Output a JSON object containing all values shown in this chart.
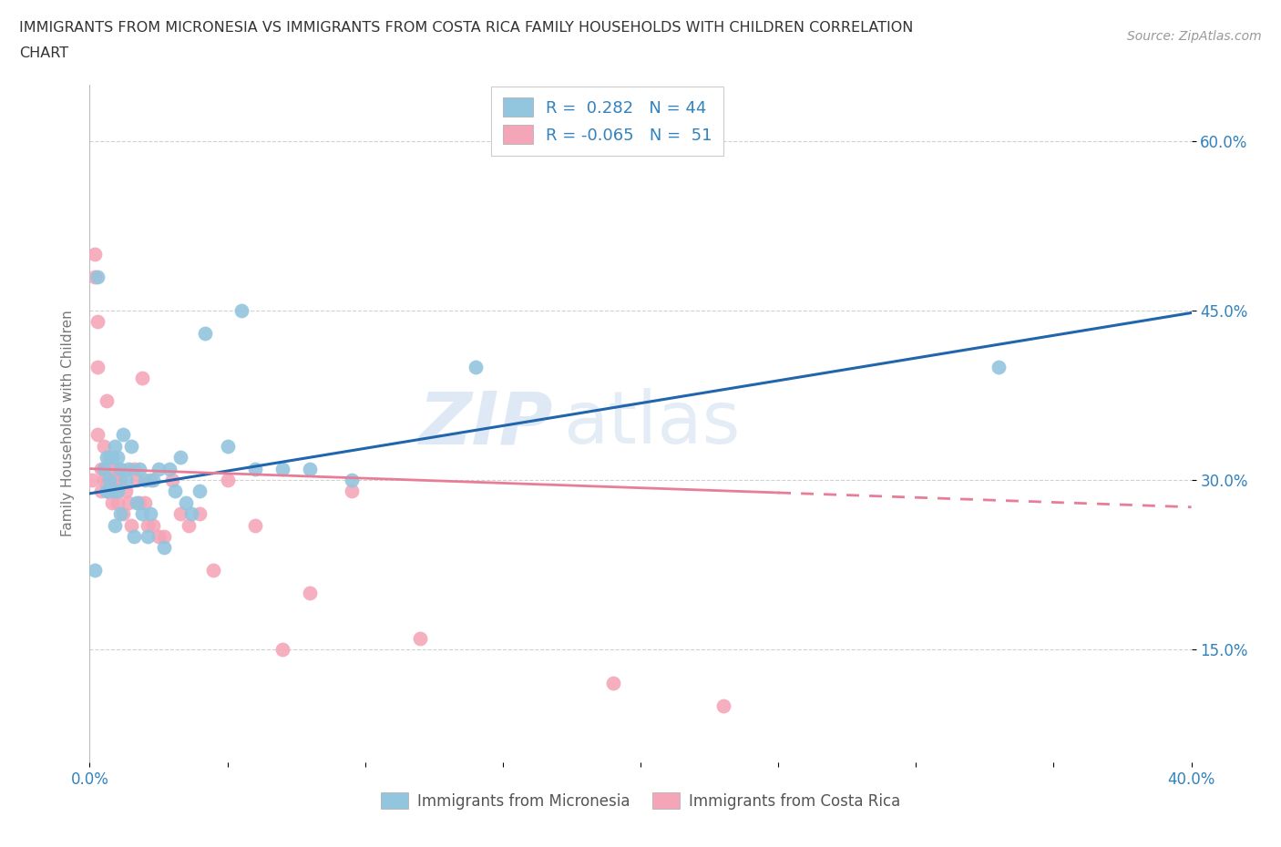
{
  "title_line1": "IMMIGRANTS FROM MICRONESIA VS IMMIGRANTS FROM COSTA RICA FAMILY HOUSEHOLDS WITH CHILDREN CORRELATION",
  "title_line2": "CHART",
  "source": "Source: ZipAtlas.com",
  "ylabel": "Family Households with Children",
  "xlim": [
    0.0,
    0.4
  ],
  "ylim": [
    0.05,
    0.65
  ],
  "x_ticks": [
    0.0,
    0.05,
    0.1,
    0.15,
    0.2,
    0.25,
    0.3,
    0.35,
    0.4
  ],
  "x_tick_labels": [
    "0.0%",
    "",
    "",
    "",
    "",
    "",
    "",
    "",
    "40.0%"
  ],
  "y_ticks": [
    0.15,
    0.3,
    0.45,
    0.6
  ],
  "y_tick_labels": [
    "15.0%",
    "30.0%",
    "45.0%",
    "60.0%"
  ],
  "color_blue": "#92c5de",
  "color_pink": "#f4a6b8",
  "color_blue_line": "#2166ac",
  "color_pink_line": "#e87d97",
  "watermark_zip": "ZIP",
  "watermark_atlas": "atlas",
  "legend_text1": "R =  0.282   N = 44",
  "legend_text2": "R = -0.065   N =  51",
  "micronesia_x": [
    0.002,
    0.003,
    0.005,
    0.006,
    0.006,
    0.007,
    0.007,
    0.008,
    0.008,
    0.009,
    0.009,
    0.01,
    0.01,
    0.011,
    0.011,
    0.012,
    0.013,
    0.014,
    0.015,
    0.016,
    0.017,
    0.018,
    0.019,
    0.02,
    0.021,
    0.022,
    0.023,
    0.025,
    0.027,
    0.029,
    0.031,
    0.033,
    0.035,
    0.037,
    0.04,
    0.042,
    0.05,
    0.055,
    0.06,
    0.07,
    0.08,
    0.095,
    0.14,
    0.33
  ],
  "micronesia_y": [
    0.22,
    0.48,
    0.31,
    0.29,
    0.32,
    0.3,
    0.32,
    0.29,
    0.32,
    0.26,
    0.33,
    0.29,
    0.32,
    0.27,
    0.31,
    0.34,
    0.3,
    0.31,
    0.33,
    0.25,
    0.28,
    0.31,
    0.27,
    0.3,
    0.25,
    0.27,
    0.3,
    0.31,
    0.24,
    0.31,
    0.29,
    0.32,
    0.28,
    0.27,
    0.29,
    0.43,
    0.33,
    0.45,
    0.31,
    0.31,
    0.31,
    0.3,
    0.4,
    0.4
  ],
  "costarica_x": [
    0.001,
    0.002,
    0.002,
    0.003,
    0.003,
    0.003,
    0.004,
    0.004,
    0.005,
    0.005,
    0.005,
    0.006,
    0.006,
    0.006,
    0.007,
    0.007,
    0.007,
    0.008,
    0.008,
    0.009,
    0.009,
    0.01,
    0.01,
    0.011,
    0.012,
    0.013,
    0.014,
    0.015,
    0.016,
    0.017,
    0.018,
    0.019,
    0.02,
    0.021,
    0.022,
    0.023,
    0.025,
    0.027,
    0.03,
    0.033,
    0.036,
    0.04,
    0.045,
    0.05,
    0.06,
    0.07,
    0.08,
    0.095,
    0.12,
    0.19,
    0.23
  ],
  "costarica_y": [
    0.3,
    0.5,
    0.48,
    0.44,
    0.4,
    0.34,
    0.29,
    0.31,
    0.33,
    0.3,
    0.31,
    0.29,
    0.3,
    0.37,
    0.29,
    0.3,
    0.31,
    0.28,
    0.3,
    0.29,
    0.3,
    0.28,
    0.31,
    0.3,
    0.27,
    0.29,
    0.28,
    0.26,
    0.31,
    0.3,
    0.28,
    0.39,
    0.28,
    0.26,
    0.3,
    0.26,
    0.25,
    0.25,
    0.3,
    0.27,
    0.26,
    0.27,
    0.22,
    0.3,
    0.26,
    0.15,
    0.2,
    0.29,
    0.16,
    0.12,
    0.1
  ],
  "background_color": "#ffffff",
  "grid_color": "#cccccc"
}
